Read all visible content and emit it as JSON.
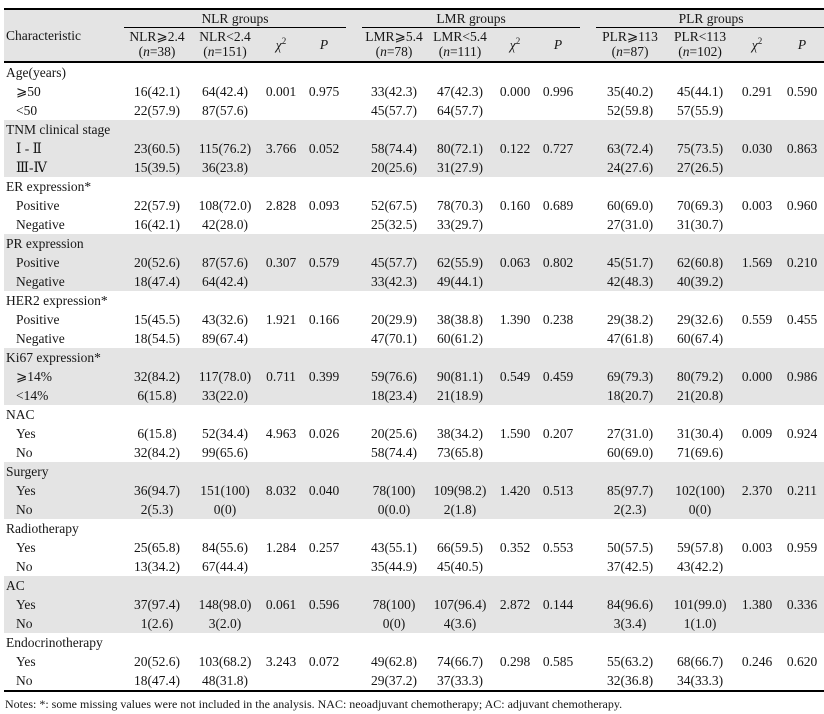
{
  "page": {
    "notes": "Notes: *: some missing values were not included in the analysis. NAC: neoadjuvant chemotherapy; AC: adjuvant chemotherapy."
  },
  "table": {
    "characteristic_header": "Characteristic",
    "stat_headers": {
      "chi_base": "χ",
      "chi_sup": "2",
      "p": "P"
    },
    "groups": [
      {
        "label": "NLR groups",
        "cols": [
          {
            "name": "NLR⩾2.4",
            "n": "38"
          },
          {
            "name": "NLR<2.4",
            "n": "151"
          }
        ]
      },
      {
        "label": "LMR groups",
        "cols": [
          {
            "name": "LMR⩾5.4",
            "n": "78"
          },
          {
            "name": "LMR<5.4",
            "n": "111"
          }
        ]
      },
      {
        "label": "PLR groups",
        "cols": [
          {
            "name": "PLR⩾113",
            "n": "87"
          },
          {
            "name": "PLR<113",
            "n": "102"
          }
        ]
      }
    ],
    "sections": [
      {
        "label": "Age(years)",
        "rows": [
          {
            "label": "⩾50",
            "values": [
              "16(42.1)",
              "64(42.4)",
              "0.001",
              "0.975",
              "33(42.3)",
              "47(42.3)",
              "0.000",
              "0.996",
              "35(40.2)",
              "45(44.1)",
              "0.291",
              "0.590"
            ]
          },
          {
            "label": "<50",
            "values": [
              "22(57.9)",
              "87(57.6)",
              "",
              "",
              "45(57.7)",
              "64(57.7)",
              "",
              "",
              "52(59.8)",
              "57(55.9)",
              "",
              ""
            ]
          }
        ]
      },
      {
        "label": "TNM clinical stage",
        "rows": [
          {
            "label": "Ⅰ - Ⅱ",
            "values": [
              "23(60.5)",
              "115(76.2)",
              "3.766",
              "0.052",
              "58(74.4)",
              "80(72.1)",
              "0.122",
              "0.727",
              "63(72.4)",
              "75(73.5)",
              "0.030",
              "0.863"
            ]
          },
          {
            "label": "Ⅲ-Ⅳ",
            "values": [
              "15(39.5)",
              "36(23.8)",
              "",
              "",
              "20(25.6)",
              "31(27.9)",
              "",
              "",
              "24(27.6)",
              "27(26.5)",
              "",
              ""
            ]
          }
        ]
      },
      {
        "label": "ER expression*",
        "rows": [
          {
            "label": "Positive",
            "values": [
              "22(57.9)",
              "108(72.0)",
              "2.828",
              "0.093",
              "52(67.5)",
              "78(70.3)",
              "0.160",
              "0.689",
              "60(69.0)",
              "70(69.3)",
              "0.003",
              "0.960"
            ]
          },
          {
            "label": "Negative",
            "values": [
              "16(42.1)",
              "42(28.0)",
              "",
              "",
              "25(32.5)",
              "33(29.7)",
              "",
              "",
              "27(31.0)",
              "31(30.7)",
              "",
              ""
            ]
          }
        ]
      },
      {
        "label": "PR expression",
        "rows": [
          {
            "label": "Positive",
            "values": [
              "20(52.6)",
              "87(57.6)",
              "0.307",
              "0.579",
              "45(57.7)",
              "62(55.9)",
              "0.063",
              "0.802",
              "45(51.7)",
              "62(60.8)",
              "1.569",
              "0.210"
            ]
          },
          {
            "label": "Negative",
            "values": [
              "18(47.4)",
              "64(42.4)",
              "",
              "",
              "33(42.3)",
              "49(44.1)",
              "",
              "",
              "42(48.3)",
              "40(39.2)",
              "",
              ""
            ]
          }
        ]
      },
      {
        "label": "HER2 expression*",
        "rows": [
          {
            "label": "Positive",
            "values": [
              "15(45.5)",
              "43(32.6)",
              "1.921",
              "0.166",
              "20(29.9)",
              "38(38.8)",
              "1.390",
              "0.238",
              "29(38.2)",
              "29(32.6)",
              "0.559",
              "0.455"
            ]
          },
          {
            "label": "Negative",
            "values": [
              "18(54.5)",
              "89(67.4)",
              "",
              "",
              "47(70.1)",
              "60(61.2)",
              "",
              "",
              "47(61.8)",
              "60(67.4)",
              "",
              ""
            ]
          }
        ]
      },
      {
        "label": "Ki67 expression*",
        "rows": [
          {
            "label": "⩾14%",
            "values": [
              "32(84.2)",
              "117(78.0)",
              "0.711",
              "0.399",
              "59(76.6)",
              "90(81.1)",
              "0.549",
              "0.459",
              "69(79.3)",
              "80(79.2)",
              "0.000",
              "0.986"
            ]
          },
          {
            "label": "<14%",
            "values": [
              "6(15.8)",
              "33(22.0)",
              "",
              "",
              "18(23.4)",
              "21(18.9)",
              "",
              "",
              "18(20.7)",
              "21(20.8)",
              "",
              ""
            ]
          }
        ]
      },
      {
        "label": "NAC",
        "rows": [
          {
            "label": "Yes",
            "values": [
              "6(15.8)",
              "52(34.4)",
              "4.963",
              "0.026",
              "20(25.6)",
              "38(34.2)",
              "1.590",
              "0.207",
              "27(31.0)",
              "31(30.4)",
              "0.009",
              "0.924"
            ]
          },
          {
            "label": "No",
            "values": [
              "32(84.2)",
              "99(65.6)",
              "",
              "",
              "58(74.4)",
              "73(65.8)",
              "",
              "",
              "60(69.0)",
              "71(69.6)",
              "",
              ""
            ]
          }
        ]
      },
      {
        "label": "Surgery",
        "rows": [
          {
            "label": "Yes",
            "values": [
              "36(94.7)",
              "151(100)",
              "8.032",
              "0.040",
              "78(100)",
              "109(98.2)",
              "1.420",
              "0.513",
              "85(97.7)",
              "102(100)",
              "2.370",
              "0.211"
            ]
          },
          {
            "label": "No",
            "values": [
              "2(5.3)",
              "0(0)",
              "",
              "",
              "0(0.0)",
              "2(1.8)",
              "",
              "",
              "2(2.3)",
              "0(0)",
              "",
              ""
            ]
          }
        ]
      },
      {
        "label": "Radiotherapy",
        "rows": [
          {
            "label": "Yes",
            "values": [
              "25(65.8)",
              "84(55.6)",
              "1.284",
              "0.257",
              "43(55.1)",
              "66(59.5)",
              "0.352",
              "0.553",
              "50(57.5)",
              "59(57.8)",
              "0.003",
              "0.959"
            ]
          },
          {
            "label": "No",
            "values": [
              "13(34.2)",
              "67(44.4)",
              "",
              "",
              "35(44.9)",
              "45(40.5)",
              "",
              "",
              "37(42.5)",
              "43(42.2)",
              "",
              ""
            ]
          }
        ]
      },
      {
        "label": "AC",
        "rows": [
          {
            "label": "Yes",
            "values": [
              "37(97.4)",
              "148(98.0)",
              "0.061",
              "0.596",
              "78(100)",
              "107(96.4)",
              "2.872",
              "0.144",
              "84(96.6)",
              "101(99.0)",
              "1.380",
              "0.336"
            ]
          },
          {
            "label": "No",
            "values": [
              "1(2.6)",
              "3(2.0)",
              "",
              "",
              "0(0)",
              "4(3.6)",
              "",
              "",
              "3(3.4)",
              "1(1.0)",
              "",
              ""
            ]
          }
        ]
      },
      {
        "label": "Endocrinotherapy",
        "rows": [
          {
            "label": "Yes",
            "values": [
              "20(52.6)",
              "103(68.2)",
              "3.243",
              "0.072",
              "49(62.8)",
              "74(66.7)",
              "0.298",
              "0.585",
              "55(63.2)",
              "68(66.7)",
              "0.246",
              "0.620"
            ]
          },
          {
            "label": "No",
            "values": [
              "18(47.4)",
              "48(31.8)",
              "",
              "",
              "29(37.2)",
              "37(33.3)",
              "",
              "",
              "32(36.8)",
              "34(33.3)",
              "",
              ""
            ]
          }
        ]
      }
    ]
  }
}
